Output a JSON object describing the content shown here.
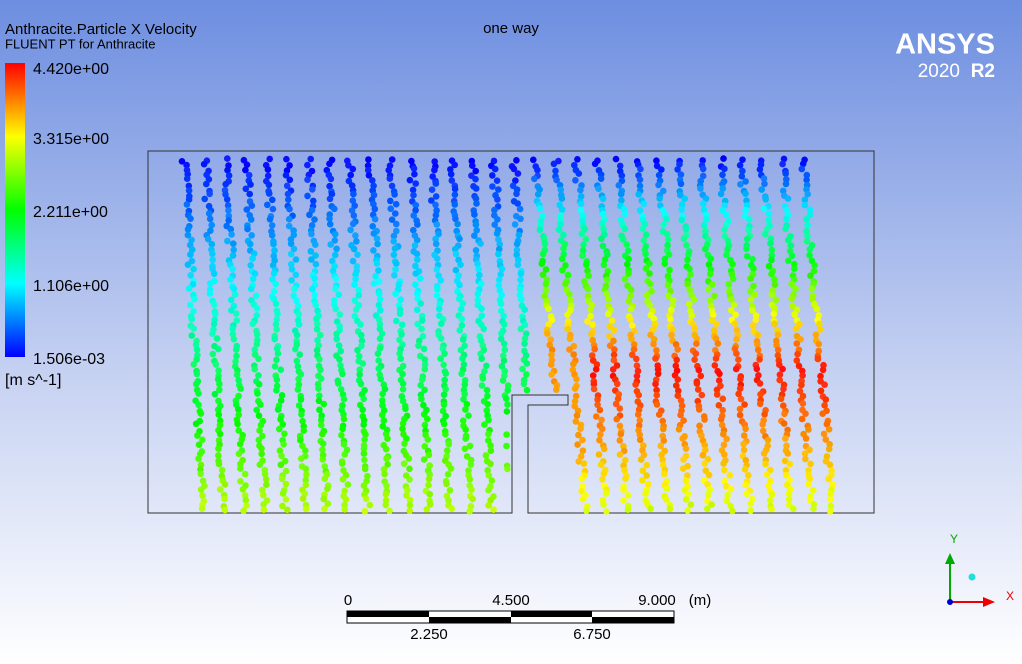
{
  "header": {
    "title": "Anthracite.Particle X Velocity",
    "subtitle": "FLUENT PT for Anthracite",
    "case": "one way"
  },
  "legend": {
    "labels": [
      "4.420e+00",
      "3.315e+00",
      "2.211e+00",
      "1.106e+00",
      "1.506e-03"
    ],
    "unit": "[m s^-1]"
  },
  "logo": {
    "name": "ANSYS",
    "year": "2020",
    "release": "R2"
  },
  "scale_bar": {
    "top_labels": [
      "0",
      "4.500",
      "9.000"
    ],
    "unit": "(m)",
    "bottom_labels": [
      "2.250",
      "6.750"
    ]
  },
  "triad": {
    "y": "Y",
    "x": "X"
  }
}
